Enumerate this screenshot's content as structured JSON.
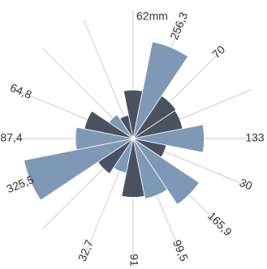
{
  "colors": {
    "light": "#7f98b6",
    "dark": "#4a5260",
    "spoke": "#c9cdd2",
    "label": "#333333"
  },
  "chart_data": {
    "type": "polar-area",
    "title": "",
    "sectors": 16,
    "start_direction": "north",
    "rotation": "clockwise",
    "unit_label": "62mm",
    "values": [
      {
        "value": 62,
        "label": "62mm",
        "color": "dark"
      },
      {
        "value": 256.3,
        "label": "256,3",
        "color": "light"
      },
      {
        "value": 70,
        "label": "70",
        "color": "dark"
      },
      {
        "value": 67,
        "label": "",
        "color": "dark"
      },
      {
        "value": 133,
        "label": "133",
        "color": "light"
      },
      {
        "value": 30,
        "label": "30",
        "color": "dark"
      },
      {
        "value": 165.9,
        "label": "165,9",
        "color": "light"
      },
      {
        "value": 99.5,
        "label": "99,5",
        "color": "light"
      },
      {
        "value": 91,
        "label": "91",
        "color": "dark"
      },
      {
        "value": 32.7,
        "label": "32,7",
        "color": "light"
      },
      {
        "value": 47,
        "label": "",
        "color": "dark"
      },
      {
        "value": 325.5,
        "label": "325,5",
        "color": "light"
      },
      {
        "value": 87.4,
        "label": "87,4",
        "color": "light"
      },
      {
        "value": 64.8,
        "label": "64,8",
        "color": "dark"
      },
      {
        "value": 22,
        "label": "",
        "color": "light"
      },
      {
        "value": 15,
        "label": "",
        "color": "dark"
      }
    ]
  }
}
